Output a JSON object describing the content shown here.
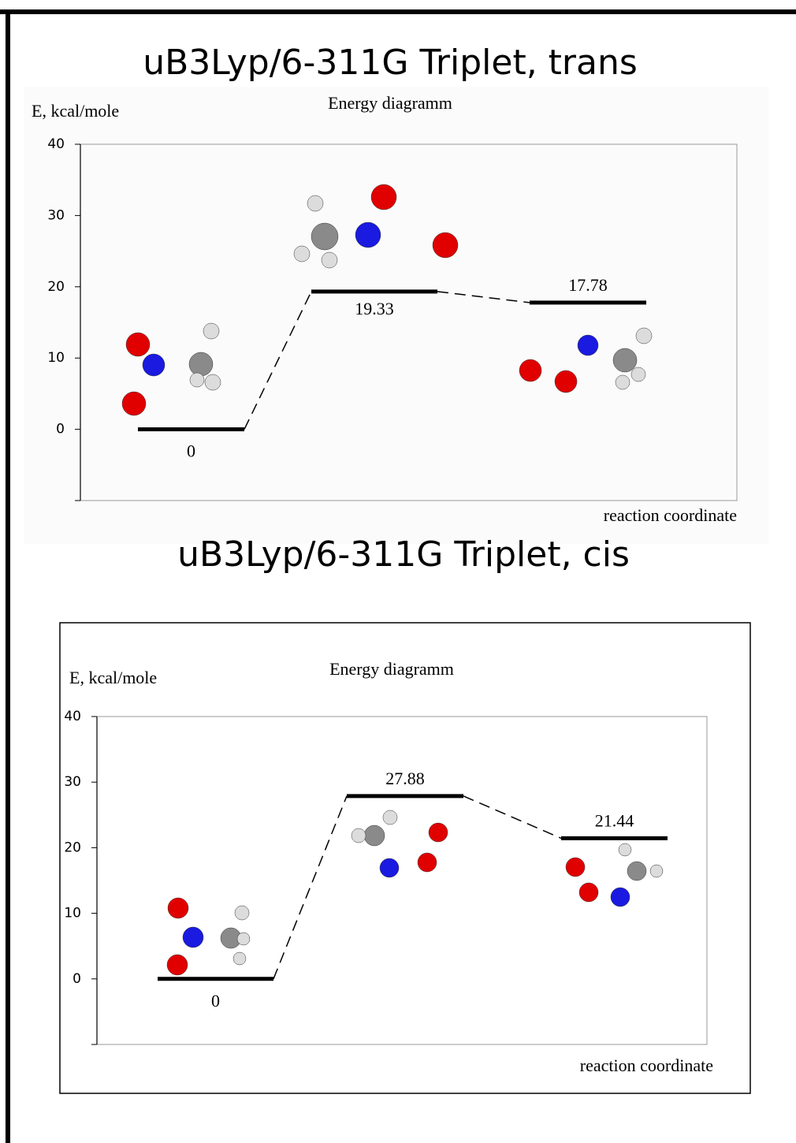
{
  "chart_data": [
    {
      "type": "energy",
      "title": "uB3Lyp/6-311G  Triplet, trans",
      "subtitle": "Energy diagramm",
      "y_label": "E, kcal/mole",
      "x_label": "reaction coordinate",
      "values": [
        0,
        19.33,
        17.78
      ],
      "color": "#000000",
      "ylim": [
        -10,
        40
      ],
      "yticks": [
        0,
        10,
        20,
        30,
        40
      ]
    },
    {
      "type": "energy",
      "title": "uB3Lyp/6-311G  Triplet, cis",
      "subtitle": "Energy diagramm",
      "y_label": "E, kcal/mole",
      "x_label": "reaction coordinate",
      "values": [
        0,
        27.88,
        21.44
      ],
      "color": "#000000",
      "ylim": [
        -10,
        40
      ],
      "yticks": [
        0,
        10,
        20,
        30,
        40
      ]
    }
  ]
}
